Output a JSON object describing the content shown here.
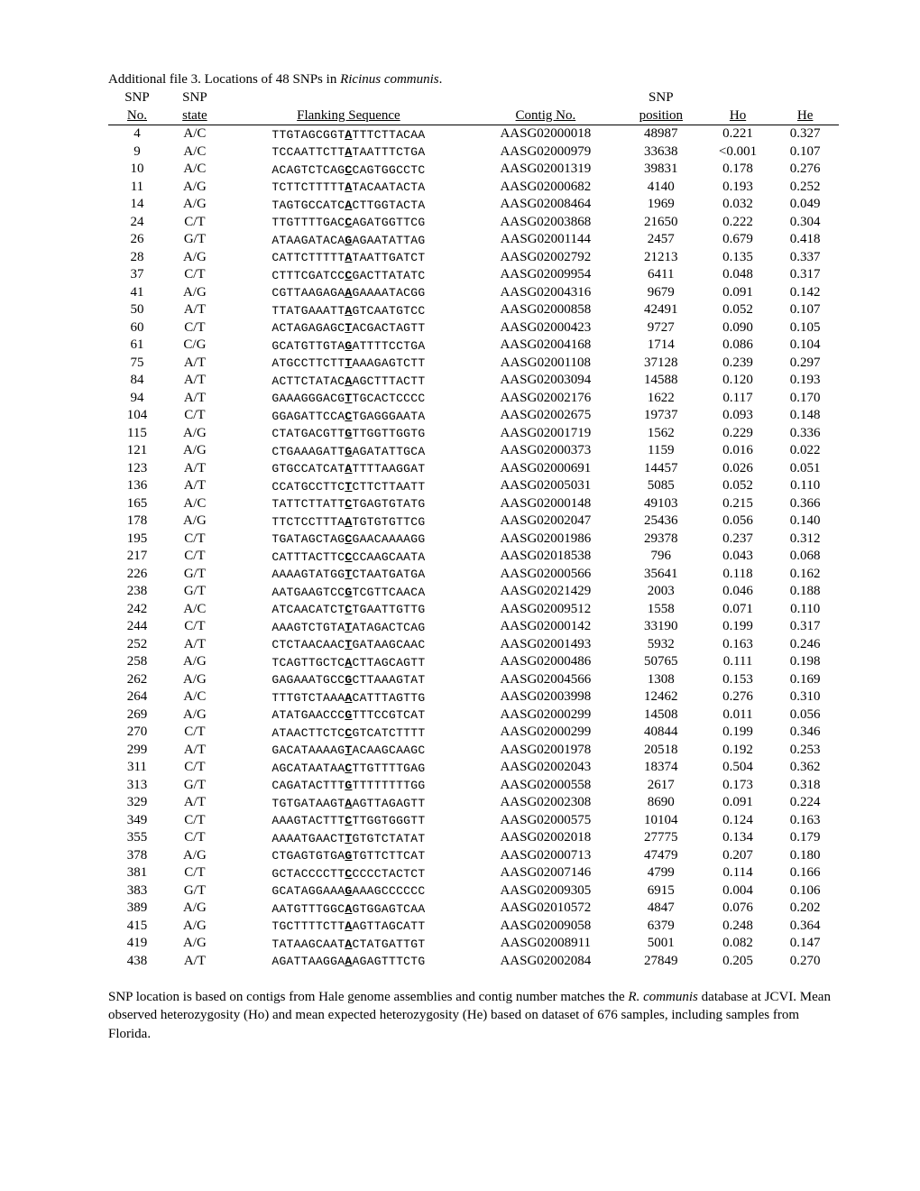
{
  "title_prefix": "Additional file 3. Locations of 48 SNPs in ",
  "title_species": "Ricinus communis",
  "title_suffix": ".",
  "headers": {
    "no": "SNP No.",
    "state": "SNP state",
    "seq": "Flanking Sequence",
    "contig": "Contig No.",
    "pos": "SNP position",
    "ho": "Ho",
    "he": "He"
  },
  "rows": [
    {
      "no": "4",
      "state": "A/C",
      "seqL": "TTGTAGCGGT",
      "seqB": "A",
      "seqR": "TTTCTTACAA",
      "contig": "AASG02000018",
      "pos": "48987",
      "ho": "0.221",
      "he": "0.327"
    },
    {
      "no": "9",
      "state": "A/C",
      "seqL": "TCCAATTCTT",
      "seqB": "A",
      "seqR": "TAATTTCTGA",
      "contig": "AASG02000979",
      "pos": "33638",
      "ho": "<0.001",
      "he": "0.107"
    },
    {
      "no": "10",
      "state": "A/C",
      "seqL": "ACAGTCTCAG",
      "seqB": "C",
      "seqR": "CAGTGGCCTC",
      "contig": "AASG02001319",
      "pos": "39831",
      "ho": "0.178",
      "he": "0.276"
    },
    {
      "no": "11",
      "state": "A/G",
      "seqL": "TCTTCTTTTT",
      "seqB": "A",
      "seqR": "TACAATACTA",
      "contig": "AASG02000682",
      "pos": "4140",
      "ho": "0.193",
      "he": "0.252"
    },
    {
      "no": "14",
      "state": "A/G",
      "seqL": "TAGTGCCATC",
      "seqB": "A",
      "seqR": "CTTGGTACTA",
      "contig": "AASG02008464",
      "pos": "1969",
      "ho": "0.032",
      "he": "0.049"
    },
    {
      "no": "24",
      "state": "C/T",
      "seqL": "TTGTTTTGAC",
      "seqB": "C",
      "seqR": "AGATGGTTCG",
      "contig": "AASG02003868",
      "pos": "21650",
      "ho": "0.222",
      "he": "0.304"
    },
    {
      "no": "26",
      "state": "G/T",
      "seqL": "ATAAGATACA",
      "seqB": "G",
      "seqR": "AGAATATTAG",
      "contig": "AASG02001144",
      "pos": "2457",
      "ho": "0.679",
      "he": "0.418"
    },
    {
      "no": "28",
      "state": "A/G",
      "seqL": "CATTCTTTTT",
      "seqB": "A",
      "seqR": "TAATTGATCT",
      "contig": "AASG02002792",
      "pos": "21213",
      "ho": "0.135",
      "he": "0.337"
    },
    {
      "no": "37",
      "state": "C/T",
      "seqL": "CTTTCGATCC",
      "seqB": "C",
      "seqR": "GACTTATATC",
      "contig": "AASG02009954",
      "pos": "6411",
      "ho": "0.048",
      "he": "0.317"
    },
    {
      "no": "41",
      "state": "A/G",
      "seqL": "CGTTAAGAGA",
      "seqB": "A",
      "seqR": "GAAAATACGG",
      "contig": "AASG02004316",
      "pos": "9679",
      "ho": "0.091",
      "he": "0.142"
    },
    {
      "no": "50",
      "state": "A/T",
      "seqL": "TTATGAAATT",
      "seqB": "A",
      "seqR": "GTCAATGTCC",
      "contig": "AASG02000858",
      "pos": "42491",
      "ho": "0.052",
      "he": "0.107"
    },
    {
      "no": "60",
      "state": "C/T",
      "seqL": "ACTAGAGAGC",
      "seqB": "T",
      "seqR": "ACGACTAGTT",
      "contig": "AASG02000423",
      "pos": "9727",
      "ho": "0.090",
      "he": "0.105"
    },
    {
      "no": "61",
      "state": "C/G",
      "seqL": "GCATGTTGTA",
      "seqB": "G",
      "seqR": "ATTTTCCTGA",
      "contig": "AASG02004168",
      "pos": "1714",
      "ho": "0.086",
      "he": "0.104"
    },
    {
      "no": "75",
      "state": "A/T",
      "seqL": "ATGCCTTCTT",
      "seqB": "T",
      "seqR": "AAAGAGTCTT",
      "contig": "AASG02001108",
      "pos": "37128",
      "ho": "0.239",
      "he": "0.297"
    },
    {
      "no": "84",
      "state": "A/T",
      "seqL": "ACTTCTATAC",
      "seqB": "A",
      "seqR": "AGCTTTACTT",
      "contig": "AASG02003094",
      "pos": "14588",
      "ho": "0.120",
      "he": "0.193"
    },
    {
      "no": "94",
      "state": "A/T",
      "seqL": "GAAAGGGACG",
      "seqB": "T",
      "seqR": "TGCACTCCCC",
      "contig": "AASG02002176",
      "pos": "1622",
      "ho": "0.117",
      "he": "0.170"
    },
    {
      "no": "104",
      "state": "C/T",
      "seqL": "GGAGATTCCA",
      "seqB": "C",
      "seqR": "TGAGGGAATA",
      "contig": "AASG02002675",
      "pos": "19737",
      "ho": "0.093",
      "he": "0.148"
    },
    {
      "no": "115",
      "state": "A/G",
      "seqL": "CTATGACGTT",
      "seqB": "G",
      "seqR": "TTGGTTGGTG",
      "contig": "AASG02001719",
      "pos": "1562",
      "ho": "0.229",
      "he": "0.336"
    },
    {
      "no": "121",
      "state": "A/G",
      "seqL": "CTGAAAGATT",
      "seqB": "G",
      "seqR": "AGATATTGCA",
      "contig": "AASG02000373",
      "pos": "1159",
      "ho": "0.016",
      "he": "0.022"
    },
    {
      "no": "123",
      "state": "A/T",
      "seqL": "GTGCCATCAT",
      "seqB": "A",
      "seqR": "TTTTAAGGAT",
      "contig": "AASG02000691",
      "pos": "14457",
      "ho": "0.026",
      "he": "0.051"
    },
    {
      "no": "136",
      "state": "A/T",
      "seqL": "CCATGCCTTC",
      "seqB": "T",
      "seqR": "CTTCTTAATT",
      "contig": "AASG02005031",
      "pos": "5085",
      "ho": "0.052",
      "he": "0.110"
    },
    {
      "no": "165",
      "state": "A/C",
      "seqL": "TATTCTTATT",
      "seqB": "C",
      "seqR": "TGAGTGTATG",
      "contig": "AASG02000148",
      "pos": "49103",
      "ho": "0.215",
      "he": "0.366"
    },
    {
      "no": "178",
      "state": "A/G",
      "seqL": "TTCTCCTTTA",
      "seqB": "A",
      "seqR": "TGTGTGTTCG",
      "contig": "AASG02002047",
      "pos": "25436",
      "ho": "0.056",
      "he": "0.140"
    },
    {
      "no": "195",
      "state": "C/T",
      "seqL": "TGATAGCTAG",
      "seqB": "C",
      "seqR": "GAACAAAAGG",
      "contig": "AASG02001986",
      "pos": "29378",
      "ho": "0.237",
      "he": "0.312"
    },
    {
      "no": "217",
      "state": "C/T",
      "seqL": "CATTTACTTC",
      "seqB": "C",
      "seqR": "CCAAGCAATA",
      "contig": "AASG02018538",
      "pos": "796",
      "ho": "0.043",
      "he": "0.068"
    },
    {
      "no": "226",
      "state": "G/T",
      "seqL": "AAAAGTATGG",
      "seqB": "T",
      "seqR": "CTAATGATGA",
      "contig": "AASG02000566",
      "pos": "35641",
      "ho": "0.118",
      "he": "0.162"
    },
    {
      "no": "238",
      "state": "G/T",
      "seqL": "AATGAAGTCC",
      "seqB": "G",
      "seqR": "TCGTTCAACA",
      "contig": "AASG02021429",
      "pos": "2003",
      "ho": "0.046",
      "he": "0.188"
    },
    {
      "no": "242",
      "state": "A/C",
      "seqL": "ATCAACATCT",
      "seqB": "C",
      "seqR": "TGAATTGTTG",
      "contig": "AASG02009512",
      "pos": "1558",
      "ho": "0.071",
      "he": "0.110"
    },
    {
      "no": "244",
      "state": "C/T",
      "seqL": "AAAGTCTGTA",
      "seqB": "T",
      "seqR": "ATAGACTCAG",
      "contig": "AASG02000142",
      "pos": "33190",
      "ho": "0.199",
      "he": "0.317"
    },
    {
      "no": "252",
      "state": "A/T",
      "seqL": "CTCTAACAAC",
      "seqB": "T",
      "seqR": "GATAAGCAAC",
      "contig": "AASG02001493",
      "pos": "5932",
      "ho": "0.163",
      "he": "0.246"
    },
    {
      "no": "258",
      "state": "A/G",
      "seqL": "TCAGTTGCTC",
      "seqB": "A",
      "seqR": "CTTAGCAGTT",
      "contig": "AASG02000486",
      "pos": "50765",
      "ho": "0.111",
      "he": "0.198"
    },
    {
      "no": "262",
      "state": "A/G",
      "seqL": "GAGAAATGCC",
      "seqB": "G",
      "seqR": "CTTAAAGTAT",
      "contig": "AASG02004566",
      "pos": "1308",
      "ho": "0.153",
      "he": "0.169"
    },
    {
      "no": "264",
      "state": "A/C",
      "seqL": "TTTGTCTAAA",
      "seqB": "A",
      "seqR": "CATTTAGTTG",
      "contig": "AASG02003998",
      "pos": "12462",
      "ho": "0.276",
      "he": "0.310"
    },
    {
      "no": "269",
      "state": "A/G",
      "seqL": "ATATGAACCC",
      "seqB": "G",
      "seqR": "TTTCCGTCAT",
      "contig": "AASG02000299",
      "pos": "14508",
      "ho": "0.011",
      "he": "0.056"
    },
    {
      "no": "270",
      "state": "C/T",
      "seqL": "ATAACTTCTC",
      "seqB": "C",
      "seqR": "GTCATCTTTT",
      "contig": "AASG02000299",
      "pos": "40844",
      "ho": "0.199",
      "he": "0.346"
    },
    {
      "no": "299",
      "state": "A/T",
      "seqL": "GACATAAAAG",
      "seqB": "T",
      "seqR": "ACAAGCAAGC",
      "contig": "AASG02001978",
      "pos": "20518",
      "ho": "0.192",
      "he": "0.253"
    },
    {
      "no": "311",
      "state": "C/T",
      "seqL": "AGCATAATAA",
      "seqB": "C",
      "seqR": "TTGTTTTGAG",
      "contig": "AASG02002043",
      "pos": "18374",
      "ho": "0.504",
      "he": "0.362"
    },
    {
      "no": "313",
      "state": "G/T",
      "seqL": "CAGATACTTT",
      "seqB": "G",
      "seqR": "TTTTTTTTGG",
      "contig": "AASG02000558",
      "pos": "2617",
      "ho": "0.173",
      "he": "0.318"
    },
    {
      "no": "329",
      "state": "A/T",
      "seqL": "TGTGATAAGT",
      "seqB": "A",
      "seqR": "AGTTAGAGTT",
      "contig": "AASG02002308",
      "pos": "8690",
      "ho": "0.091",
      "he": "0.224"
    },
    {
      "no": "349",
      "state": "C/T",
      "seqL": "AAAGTACTTT",
      "seqB": "C",
      "seqR": "TTGGTGGGTT",
      "contig": "AASG02000575",
      "pos": "10104",
      "ho": "0.124",
      "he": "0.163"
    },
    {
      "no": "355",
      "state": "C/T",
      "seqL": "AAAATGAACT",
      "seqB": "T",
      "seqR": "GTGTCTATAT",
      "contig": "AASG02002018",
      "pos": "27775",
      "ho": "0.134",
      "he": "0.179"
    },
    {
      "no": "378",
      "state": "A/G",
      "seqL": "CTGAGTGTGA",
      "seqB": "G",
      "seqR": "TGTTCTTCAT",
      "contig": "AASG02000713",
      "pos": "47479",
      "ho": "0.207",
      "he": "0.180"
    },
    {
      "no": "381",
      "state": "C/T",
      "seqL": "GCTACCCCTT",
      "seqB": "C",
      "seqR": "CCCCTACTCT",
      "contig": "AASG02007146",
      "pos": "4799",
      "ho": "0.114",
      "he": "0.166"
    },
    {
      "no": "383",
      "state": "G/T",
      "seqL": "GCATAGGAAA",
      "seqB": "G",
      "seqR": "AAAGCCCCCC",
      "contig": "AASG02009305",
      "pos": "6915",
      "ho": "0.004",
      "he": "0.106"
    },
    {
      "no": "389",
      "state": "A/G",
      "seqL": "AATGTTTGGC",
      "seqB": "A",
      "seqR": "GTGGAGTCAA",
      "contig": "AASG02010572",
      "pos": "4847",
      "ho": "0.076",
      "he": "0.202"
    },
    {
      "no": "415",
      "state": "A/G",
      "seqL": "TGCTTTTCTT",
      "seqB": "A",
      "seqR": "AGTTAGCATT",
      "contig": "AASG02009058",
      "pos": "6379",
      "ho": "0.248",
      "he": "0.364"
    },
    {
      "no": "419",
      "state": "A/G",
      "seqL": "TATAAGCAAT",
      "seqB": "A",
      "seqR": "CTATGATTGT",
      "contig": "AASG02008911",
      "pos": "5001",
      "ho": "0.082",
      "he": "0.147"
    },
    {
      "no": "438",
      "state": "A/T",
      "seqL": "AGATTAAGGA",
      "seqB": "A",
      "seqR": "AGAGTTTCTG",
      "contig": "AASG02002084",
      "pos": "27849",
      "ho": "0.205",
      "he": "0.270"
    }
  ],
  "footnote_p1": "SNP location is based on contigs from Hale genome assemblies and contig number matches the ",
  "footnote_species": "R. communis",
  "footnote_p2": " database at JCVI. Mean observed heterozygosity (Ho) and mean expected heterozygosity (He) based on dataset of 676 samples, including samples from Florida."
}
